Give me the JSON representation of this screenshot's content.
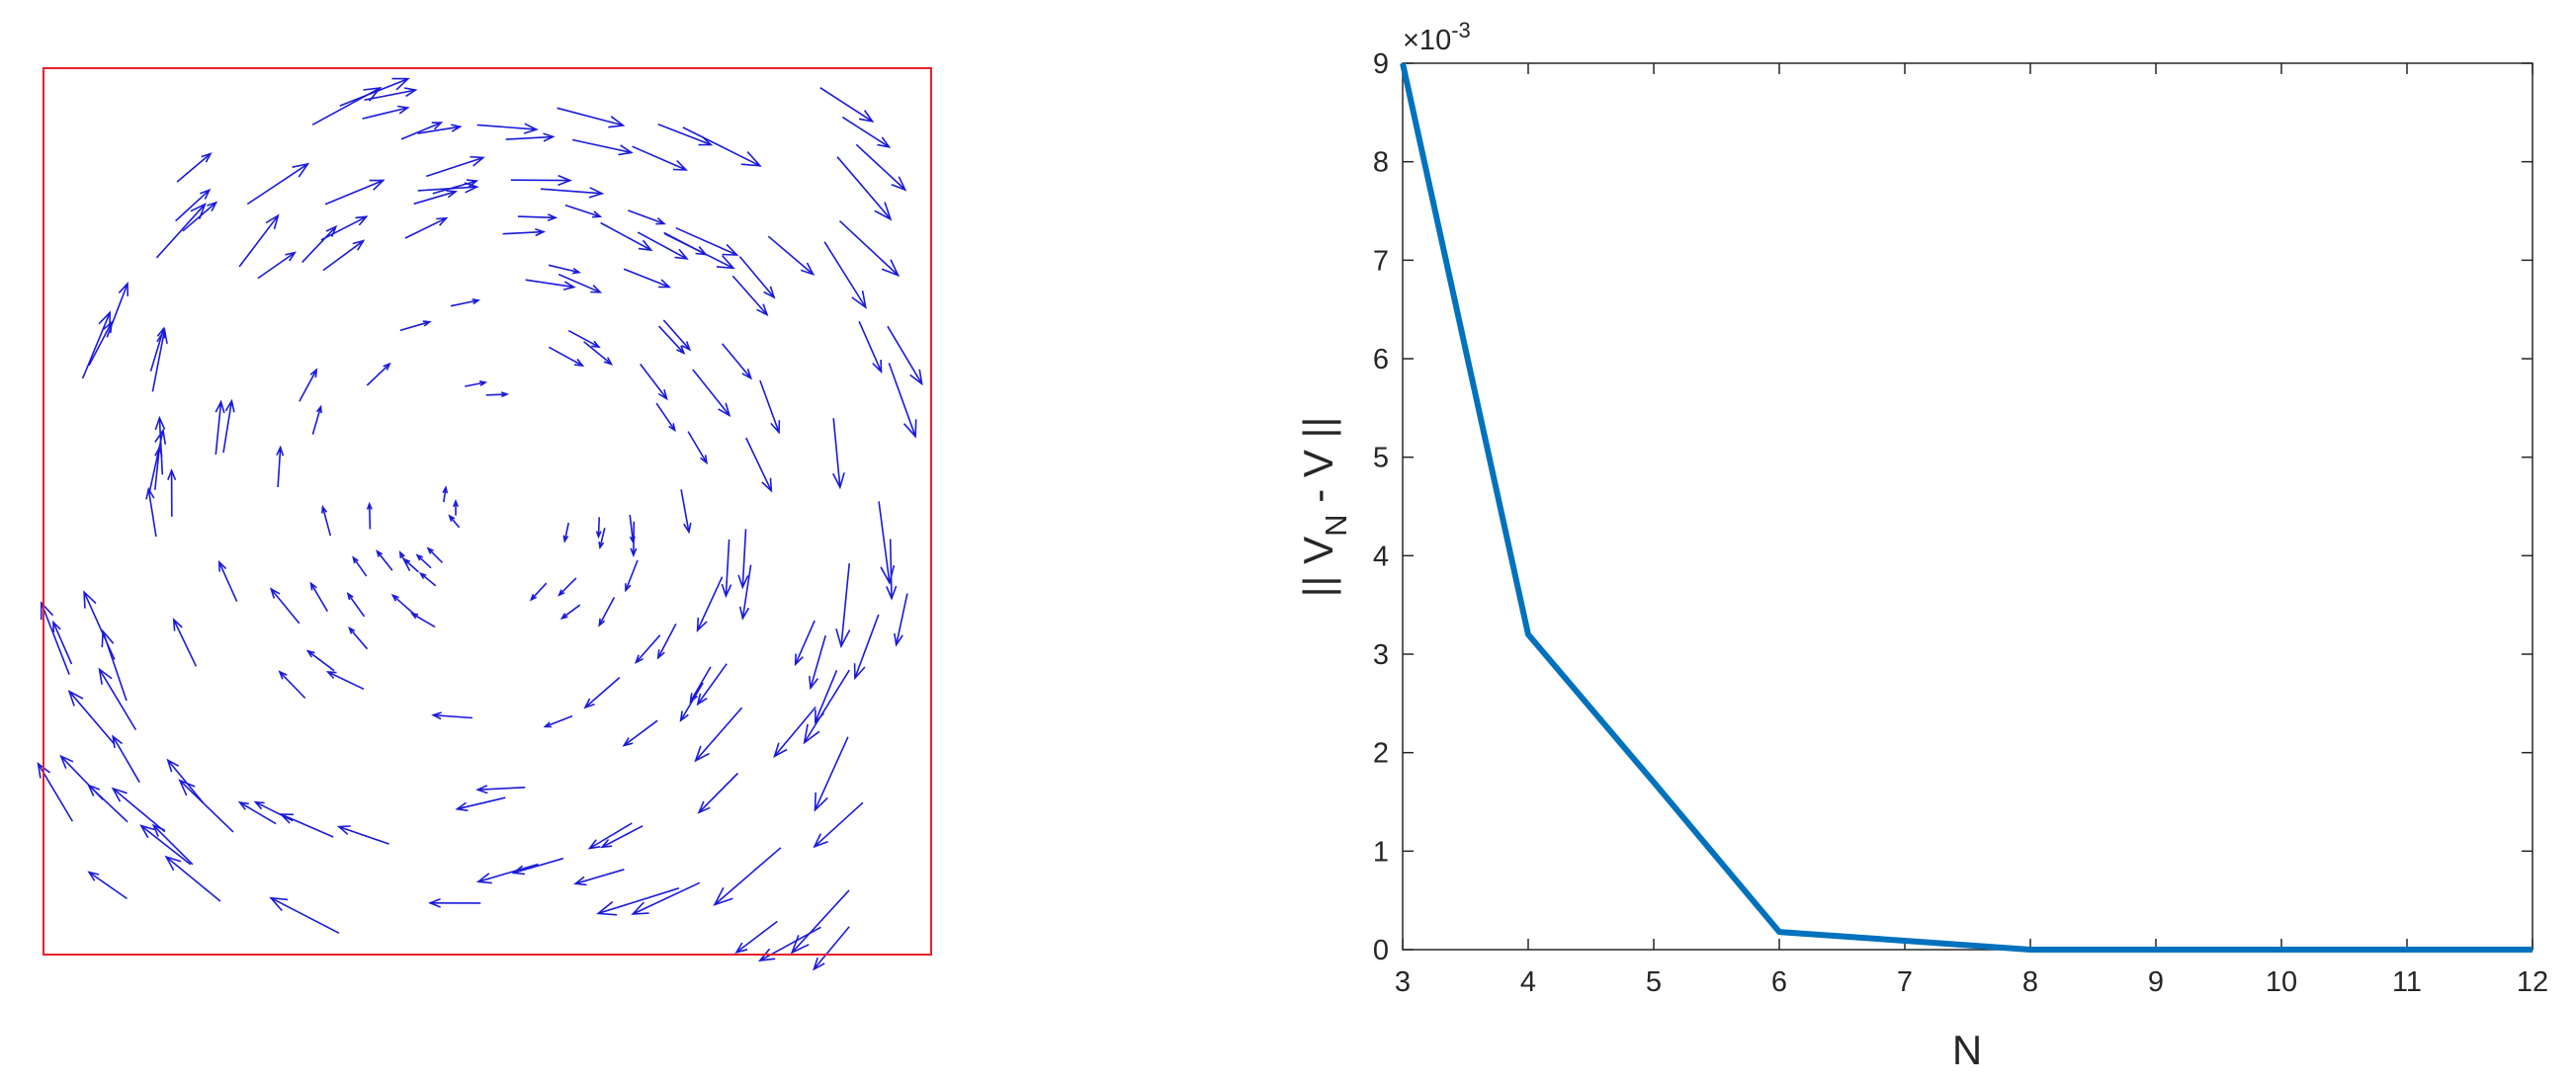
{
  "chart_data": [
    {
      "type": "quiver",
      "title": "",
      "xlabel": "",
      "ylabel": "",
      "xlim": [
        0,
        1
      ],
      "ylim": [
        0,
        1
      ],
      "grid": false,
      "box_color": "#e8202a",
      "arrow_color": "#1a1adb",
      "field": "clockwise vortex, eye slightly left of center, near-zero speed at the eye, fastest along the right wall",
      "vortex_center": [
        0.5,
        0.5
      ],
      "arrow_count_approx": 190
    },
    {
      "type": "line",
      "title": "",
      "xlabel": "N",
      "ylabel": "|| V_N - V ||",
      "ylabel_parts": {
        "pre": "|| V",
        "sub": "N",
        "post": " - V ||"
      },
      "x": [
        3,
        4,
        5,
        6,
        7,
        8,
        9,
        10,
        11,
        12
      ],
      "series": [
        {
          "values": [
            0.009,
            0.0032,
            0.0017,
            0.00018,
            9e-05,
            0.0,
            0.0,
            0.0,
            0.0,
            0.0
          ],
          "color": "#0072bd"
        }
      ],
      "xlim": [
        3,
        12
      ],
      "ylim": [
        0,
        0.009
      ],
      "xticks": [
        "3",
        "4",
        "5",
        "6",
        "7",
        "8",
        "9",
        "10",
        "11",
        "12"
      ],
      "yticks": [
        "0",
        "1",
        "2",
        "3",
        "4",
        "5",
        "6",
        "7",
        "8",
        "9"
      ],
      "y_exponent": {
        "base": "×10",
        "exp": "-3"
      },
      "grid": false,
      "legend": "none"
    }
  ]
}
